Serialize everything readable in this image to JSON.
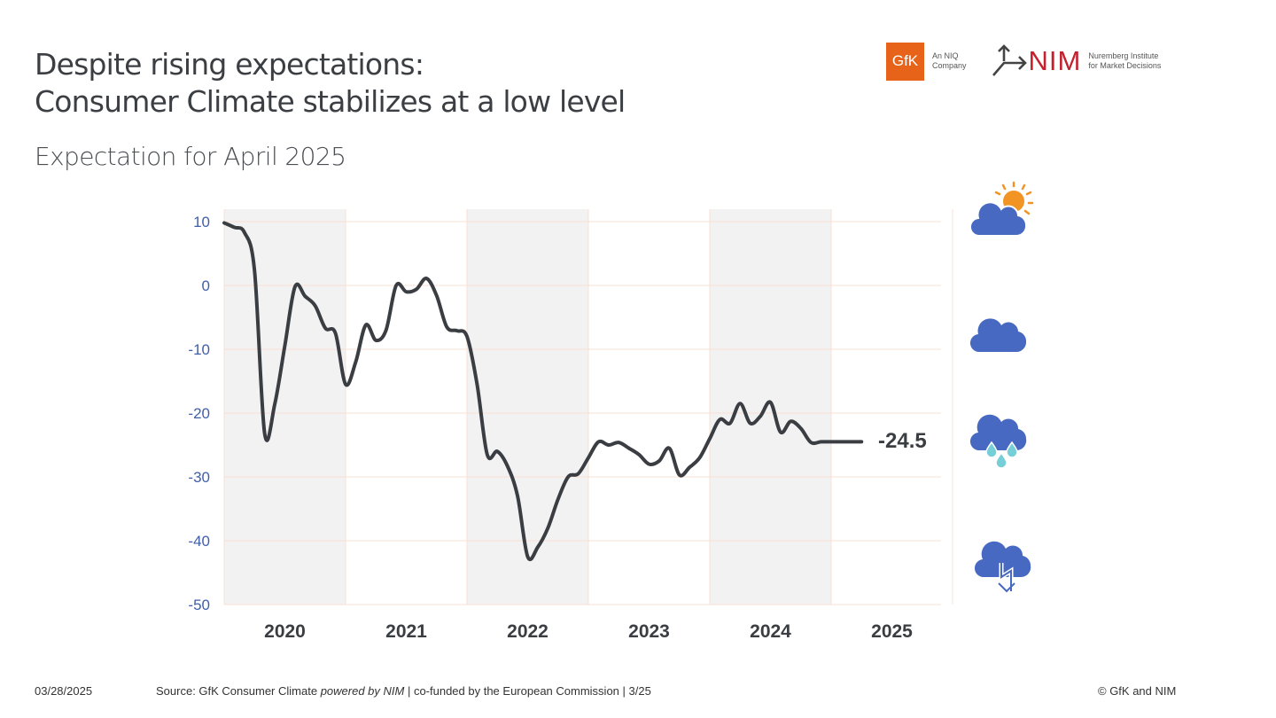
{
  "header": {
    "title_line1": "Despite rising expectations:",
    "title_line2": "Consumer Climate stabilizes at a low level",
    "subtitle": "Expectation for April 2025"
  },
  "logos": {
    "gfk_text": "GfK",
    "gfk_sub_line1": "An NIQ",
    "gfk_sub_line2": "Company",
    "nim_text": "NIM",
    "nim_sub_line1": "Nuremberg Institute",
    "nim_sub_line2": "for Market Decisions"
  },
  "legend_icons": [
    {
      "name": "sun-behind-cloud-icon",
      "meaning": "sunny/cloudy"
    },
    {
      "name": "cloud-icon",
      "meaning": "cloudy"
    },
    {
      "name": "rain-cloud-icon",
      "meaning": "rain"
    },
    {
      "name": "thunderstorm-cloud-icon",
      "meaning": "storm"
    }
  ],
  "colors": {
    "line": "#3a3d42",
    "axis_label": "#3f5fa8",
    "band": "#f2f2f2",
    "gridline": "#f9e0d6",
    "cloud": "#4769c2",
    "sun": "#f29423",
    "rain": "#76cfd6",
    "gfk": "#e8631a",
    "nim": "#c4202e"
  },
  "footer": {
    "date": "03/28/2025",
    "source_prefix": "Source: GfK Consumer Climate ",
    "source_italic": "powered by NIM",
    "source_suffix": " | co-funded by the European Commission | 3/25",
    "copyright": "© GfK and NIM"
  },
  "chart_data": {
    "type": "line",
    "title": "Expectation for April 2025",
    "xlabel": "",
    "ylabel": "",
    "ylim": [
      -50,
      10
    ],
    "yticks": [
      10,
      0,
      -10,
      -20,
      -30,
      -40,
      -50
    ],
    "xtick_labels": [
      "2020",
      "2021",
      "2022",
      "2023",
      "2024",
      "2025"
    ],
    "x_start": "2020-01",
    "x_end": "2025-04",
    "shaded_years": [
      "2020",
      "2022",
      "2024"
    ],
    "grid": true,
    "last_value_label": "-24.5",
    "series": [
      {
        "name": "GfK Consumer Climate",
        "frequency": "monthly",
        "values": [
          9.8,
          9.1,
          8.3,
          2.3,
          -23.2,
          -18.6,
          -9.4,
          -0.2,
          -1.7,
          -3.2,
          -6.7,
          -7.5,
          -15.5,
          -12.0,
          -6.2,
          -8.6,
          -7.0,
          0.0,
          -1.0,
          -0.6,
          1.1,
          -1.6,
          -6.5,
          -7.1,
          -8.0,
          -15.5,
          -26.5,
          -26.0,
          -28.3,
          -33.0,
          -42.5,
          -41.0,
          -38.0,
          -33.5,
          -30.0,
          -29.5,
          -27.0,
          -24.5,
          -25.0,
          -24.6,
          -25.5,
          -26.5,
          -28.0,
          -27.5,
          -25.5,
          -29.7,
          -28.5,
          -27.0,
          -24.0,
          -21.0,
          -21.6,
          -18.5,
          -21.6,
          -20.5,
          -18.3,
          -23.0,
          -21.3,
          -22.4,
          -24.6,
          -24.5,
          -24.5,
          -24.5,
          -24.5,
          -24.5
        ]
      }
    ]
  }
}
